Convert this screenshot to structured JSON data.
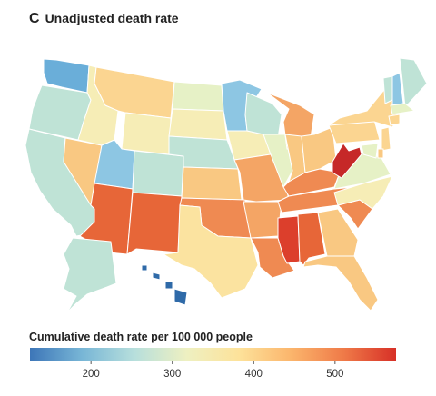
{
  "header": {
    "panel_letter": "C",
    "title": "Unadjusted death rate"
  },
  "legend": {
    "title": "Cumulative death rate per 100 000 people",
    "range": [
      125,
      575
    ],
    "ticks": [
      200,
      300,
      400,
      500
    ],
    "color_stops": [
      "#3d76b8",
      "#78b6d6",
      "#b7dfdc",
      "#eef0c1",
      "#fde29a",
      "#fbb56c",
      "#ef7a48",
      "#d73027"
    ]
  },
  "colors": {
    "light_teal": "#bfe3d6",
    "pale_green": "#e6f1c6",
    "pale_yellow": "#f6edb6",
    "light_yellow": "#fbe3a0",
    "light_orange": "#f9c882",
    "orange": "#f4a565",
    "dark_orange": "#ef8a52",
    "red_orange": "#e76638",
    "red": "#dc3f2c",
    "deep_red": "#c62828",
    "blue": "#6aaed9",
    "light_blue": "#8dc6e3",
    "dark_blue": "#2f6aa8"
  },
  "states": [
    {
      "name": "Washington",
      "color": "#6aaed9"
    },
    {
      "name": "Oregon",
      "color": "#bfe3d6"
    },
    {
      "name": "California",
      "color": "#bfe3d6"
    },
    {
      "name": "Nevada",
      "color": "#f9c882"
    },
    {
      "name": "Idaho",
      "color": "#f6edb6"
    },
    {
      "name": "Montana",
      "color": "#fbd591"
    },
    {
      "name": "Wyoming",
      "color": "#f6edb6"
    },
    {
      "name": "Utah",
      "color": "#8dc6e3"
    },
    {
      "name": "Arizona",
      "color": "#e76638"
    },
    {
      "name": "Colorado",
      "color": "#bfe3d6"
    },
    {
      "name": "New Mexico",
      "color": "#e76638"
    },
    {
      "name": "North Dakota",
      "color": "#e6f1c6"
    },
    {
      "name": "South Dakota",
      "color": "#f6edb6"
    },
    {
      "name": "Nebraska",
      "color": "#bfe3d6"
    },
    {
      "name": "Kansas",
      "color": "#f9c882"
    },
    {
      "name": "Oklahoma",
      "color": "#ef8a52"
    },
    {
      "name": "Texas",
      "color": "#fbe3a0"
    },
    {
      "name": "Minnesota",
      "color": "#8dc6e3"
    },
    {
      "name": "Iowa",
      "color": "#f6edb6"
    },
    {
      "name": "Missouri",
      "color": "#f4a565"
    },
    {
      "name": "Arkansas",
      "color": "#f4a565"
    },
    {
      "name": "Louisiana",
      "color": "#ef8a52"
    },
    {
      "name": "Wisconsin",
      "color": "#bfe3d6"
    },
    {
      "name": "Illinois",
      "color": "#e6f1c6"
    },
    {
      "name": "Michigan",
      "color": "#f4a565"
    },
    {
      "name": "Indiana",
      "color": "#f9c882"
    },
    {
      "name": "Ohio",
      "color": "#f9c882"
    },
    {
      "name": "Kentucky",
      "color": "#ef8a52"
    },
    {
      "name": "Tennessee",
      "color": "#ef8a52"
    },
    {
      "name": "Mississippi",
      "color": "#dc3f2c"
    },
    {
      "name": "Alabama",
      "color": "#e76638"
    },
    {
      "name": "Georgia",
      "color": "#f9c882"
    },
    {
      "name": "Florida",
      "color": "#f9c882"
    },
    {
      "name": "South Carolina",
      "color": "#ef8a52"
    },
    {
      "name": "North Carolina",
      "color": "#f6edb6"
    },
    {
      "name": "Virginia",
      "color": "#e6f1c6"
    },
    {
      "name": "West Virginia",
      "color": "#c62828"
    },
    {
      "name": "Pennsylvania",
      "color": "#fbd591"
    },
    {
      "name": "New York",
      "color": "#fbd591"
    },
    {
      "name": "Vermont",
      "color": "#bfe3d6"
    },
    {
      "name": "New Hampshire",
      "color": "#8dc6e3"
    },
    {
      "name": "Maine",
      "color": "#bfe3d6"
    },
    {
      "name": "Massachusetts",
      "color": "#e6f1c6"
    },
    {
      "name": "Connecticut",
      "color": "#fbd591"
    },
    {
      "name": "New Jersey",
      "color": "#fbd591"
    },
    {
      "name": "Delaware",
      "color": "#f9c882"
    },
    {
      "name": "Maryland",
      "color": "#e6f1c6"
    },
    {
      "name": "Alaska",
      "color": "#bfe3d6"
    },
    {
      "name": "Hawaii",
      "color": "#2f6aa8"
    }
  ]
}
